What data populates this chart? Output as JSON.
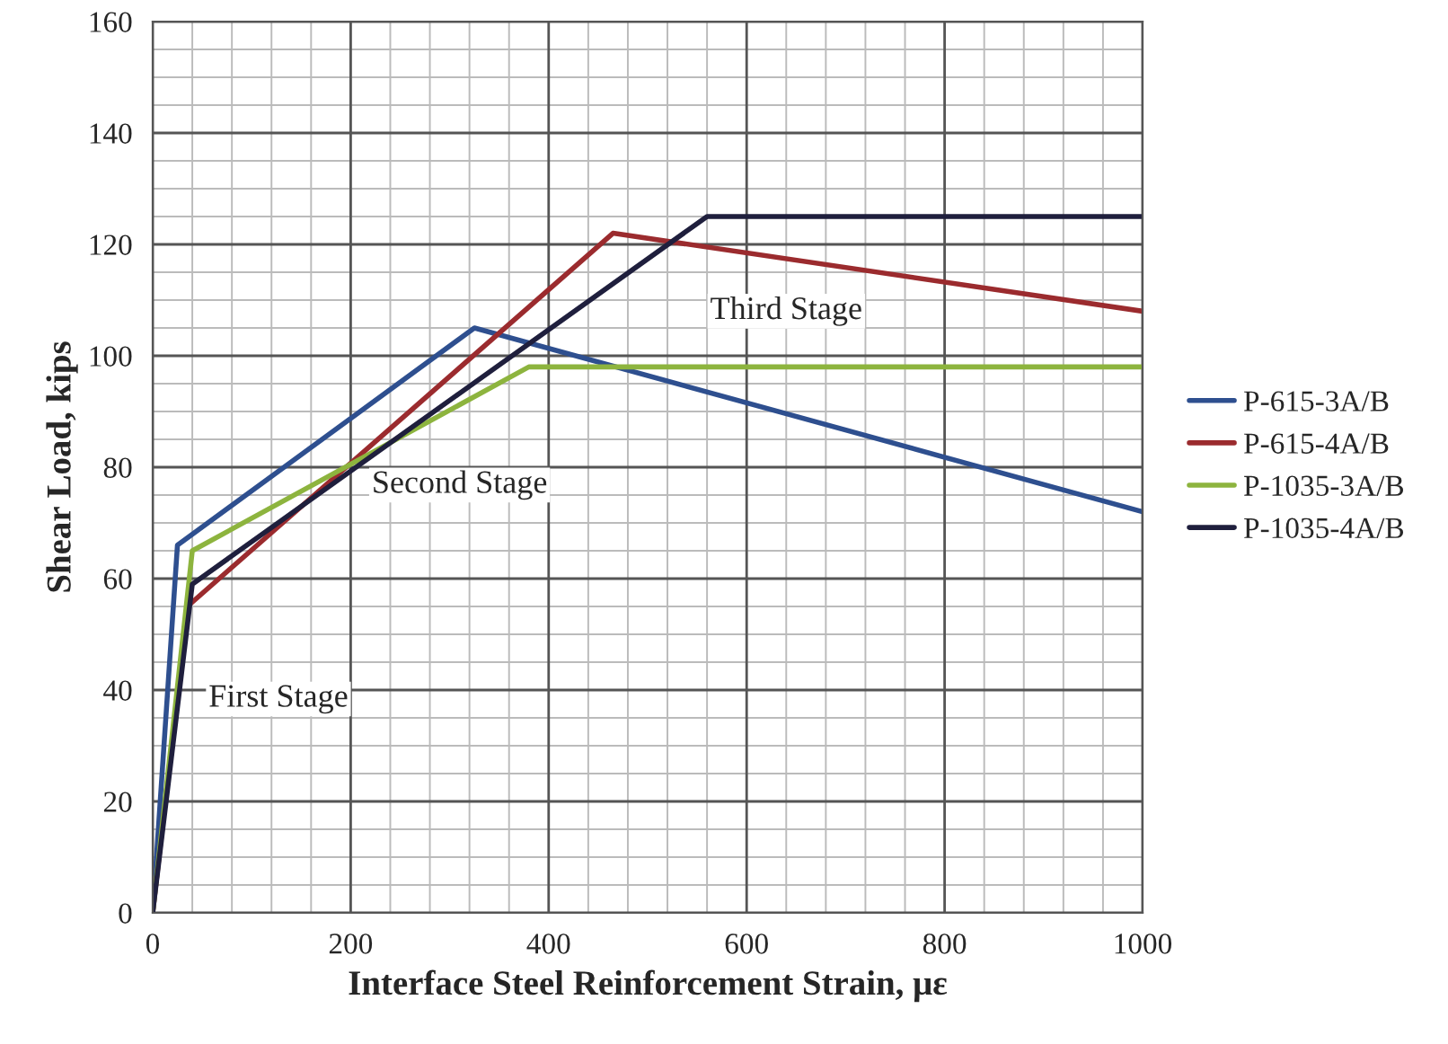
{
  "chart_data": {
    "type": "line",
    "xlabel": "Interface Steel Reinforcement Strain, με",
    "ylabel": "Shear Load, kips",
    "xlim": [
      0,
      1000
    ],
    "xticks": [
      0,
      200,
      400,
      600,
      800,
      1000
    ],
    "ylim": [
      0,
      160
    ],
    "yticks": [
      0,
      20,
      40,
      60,
      80,
      100,
      120,
      140,
      160
    ],
    "grid": true,
    "legend": "right",
    "marker": "none",
    "line_style": "solid",
    "series": [
      {
        "name": "P-615-3A/B",
        "color": "#2e4f8f",
        "x": [
          0,
          25,
          325,
          1000
        ],
        "values": [
          0,
          66,
          105,
          72
        ]
      },
      {
        "name": "P-615-4A/B",
        "color": "#9b2b2e",
        "x": [
          0,
          35,
          465,
          1000
        ],
        "values": [
          0,
          55,
          122,
          108
        ]
      },
      {
        "name": "P-1035-3A/B",
        "color": "#8db43e",
        "x": [
          0,
          40,
          380,
          1000
        ],
        "values": [
          0,
          65,
          98,
          98
        ]
      },
      {
        "name": "P-1035-4A/B",
        "color": "#1f1f3d",
        "x": [
          0,
          40,
          560,
          1000
        ],
        "values": [
          0,
          59,
          125,
          125
        ]
      }
    ],
    "annotations": [
      "First Stage",
      "Second Stage",
      "Third Stage"
    ]
  }
}
